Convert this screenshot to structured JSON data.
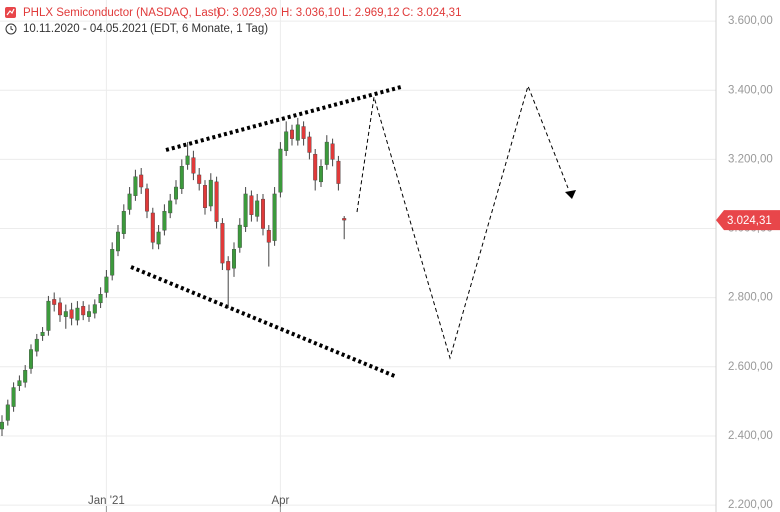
{
  "chart_data": {
    "type": "candlestick",
    "title": "PHLX Semiconductor (NASDAQ, Last)",
    "ohlc_labels": [
      "O: 3.029,30",
      "H: 3.036,10",
      "L: 2.969,12",
      "C: 3.024,31"
    ],
    "date_range": "10.11.2020 - 04.05.2021",
    "range_info": "(EDT, 6 Monate, 1 Tag)",
    "categories": [
      null,
      null,
      null,
      null,
      null,
      null,
      null,
      null,
      null,
      null,
      null,
      null,
      null,
      null,
      null,
      null,
      null,
      null,
      "Jan '21",
      null,
      null,
      null,
      null,
      null,
      null,
      null,
      null,
      null,
      null,
      null,
      null,
      null,
      null,
      null,
      null,
      null,
      null,
      null,
      null,
      null,
      null,
      null,
      null,
      null,
      null,
      null,
      null,
      null,
      "Apr",
      null,
      null,
      null,
      null,
      null,
      null,
      null,
      null,
      null,
      null,
      null
    ],
    "series": [
      {
        "name": "PHLX Semiconductor",
        "up_color": "#3c9a3c",
        "down_color": "#e03a3a",
        "open": [
          2420,
          2445,
          2485,
          2545,
          2555,
          2595,
          2645,
          2690,
          2705,
          2795,
          2785,
          2745,
          2765,
          2735,
          2775,
          2745,
          2755,
          2785,
          2815,
          2865,
          2935,
          2985,
          3055,
          3095,
          3155,
          3115,
          3045,
          2955,
          2995,
          3045,
          3085,
          3115,
          3185,
          3205,
          3155,
          3125,
          3065,
          3135,
          3015,
          2905,
          2885,
          2945,
          3005,
          3095,
          3035,
          3085,
          2995,
          2965,
          3105,
          3225,
          3285,
          3255,
          3295,
          3265,
          3215,
          3135,
          3185,
          3245,
          3195,
          3029.3
        ],
        "high": [
          2460,
          2505,
          2555,
          2575,
          2605,
          2665,
          2695,
          2715,
          2805,
          2815,
          2800,
          2780,
          2785,
          2790,
          2790,
          2780,
          2795,
          2830,
          2880,
          2960,
          3010,
          3070,
          3120,
          3170,
          3175,
          3130,
          3060,
          3010,
          3070,
          3100,
          3140,
          3200,
          3250,
          3225,
          3175,
          3140,
          3160,
          3150,
          3030,
          2920,
          2960,
          3030,
          3120,
          3110,
          3100,
          3100,
          3010,
          3120,
          3250,
          3310,
          3300,
          3320,
          3310,
          3280,
          3230,
          3200,
          3270,
          3260,
          3210,
          3036.1
        ],
        "low": [
          2400,
          2430,
          2470,
          2530,
          2540,
          2580,
          2630,
          2675,
          2690,
          2760,
          2730,
          2710,
          2720,
          2720,
          2735,
          2730,
          2740,
          2770,
          2800,
          2850,
          2920,
          2970,
          3040,
          3080,
          3100,
          3030,
          2940,
          2940,
          2980,
          3030,
          3070,
          3100,
          3170,
          3140,
          3110,
          3040,
          3050,
          3000,
          2880,
          2770,
          2860,
          2930,
          2990,
          3020,
          3020,
          2980,
          2890,
          2950,
          3090,
          3210,
          3240,
          3240,
          3240,
          3200,
          3110,
          3120,
          3170,
          3180,
          3110,
          2969.12
        ],
        "close": [
          2440,
          2490,
          2540,
          2560,
          2590,
          2650,
          2680,
          2700,
          2790,
          2780,
          2750,
          2760,
          2740,
          2770,
          2750,
          2760,
          2780,
          2810,
          2860,
          2940,
          2990,
          3050,
          3100,
          3150,
          3120,
          3050,
          2960,
          2990,
          3050,
          3080,
          3120,
          3180,
          3210,
          3160,
          3130,
          3060,
          3140,
          3020,
          2900,
          2880,
          2940,
          3010,
          3100,
          3040,
          3080,
          3000,
          2960,
          3100,
          3230,
          3280,
          3260,
          3300,
          3260,
          3220,
          3140,
          3180,
          3250,
          3200,
          3130,
          3024.31
        ]
      }
    ],
    "ylim": [
      2180,
      3661
    ],
    "yticks": [
      {
        "value": 2200,
        "label": "2.200,00"
      },
      {
        "value": 2400,
        "label": "2.400,00"
      },
      {
        "value": 2600,
        "label": "2.600,00"
      },
      {
        "value": 2800,
        "label": "2.800,00"
      },
      {
        "value": 3000,
        "label": "3.000,00"
      },
      {
        "value": 3200,
        "label": "3.200,00"
      },
      {
        "value": 3400,
        "label": "3.400,00"
      },
      {
        "value": 3600,
        "label": "3.600,00"
      }
    ],
    "price_marker": {
      "value": 3024.31,
      "label": "3.024,31",
      "color": "#e8464a"
    },
    "grid": true
  }
}
